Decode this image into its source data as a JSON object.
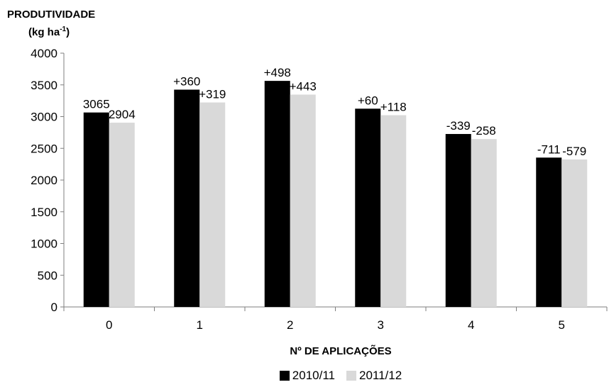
{
  "chart_data": {
    "type": "bar",
    "ylabel_line1": "PRODUTIVIDADE",
    "ylabel_line2_prefix": "(kg ha",
    "ylabel_line2_sup": "-1",
    "ylabel_line2_suffix": ")",
    "xlabel": "Nº DE APLICAÇÕES",
    "categories": [
      "0",
      "1",
      "2",
      "3",
      "4",
      "5"
    ],
    "ylim": [
      0,
      4000
    ],
    "yticks": [
      0,
      500,
      1000,
      1500,
      2000,
      2500,
      3000,
      3500,
      4000
    ],
    "grid": false,
    "legend_position": "bottom",
    "series": [
      {
        "name": "2010/11",
        "color": "#000000",
        "values": [
          3065,
          3425,
          3563,
          3125,
          2726,
          2354
        ],
        "labels": [
          "3065",
          "+360",
          "+498",
          "+60",
          "-339",
          "-711"
        ]
      },
      {
        "name": "2011/12",
        "color": "#d9d9d9",
        "values": [
          2904,
          3223,
          3347,
          3022,
          2646,
          2325
        ],
        "labels": [
          "2904",
          "+319",
          "+443",
          "+118",
          "-258",
          "-579"
        ]
      }
    ]
  }
}
